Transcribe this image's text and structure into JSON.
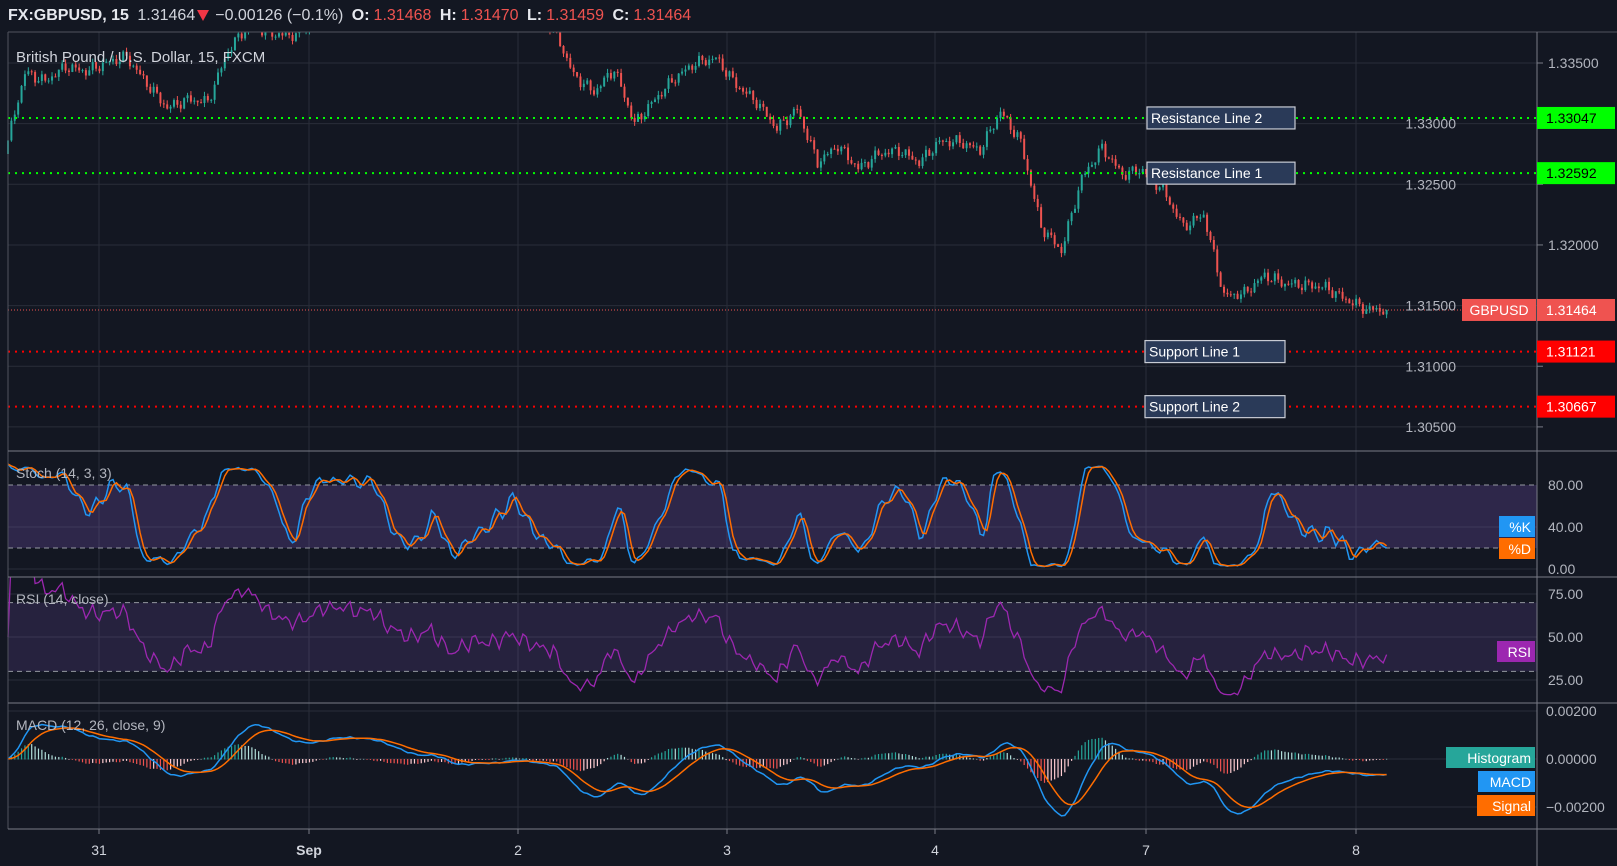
{
  "header": {
    "symbol": "FX:GBPUSD, 15",
    "last": "1.31464",
    "change": "−0.00126 (−0.1%)",
    "o_label": "O:",
    "o": "1.31468",
    "h_label": "H:",
    "h": "1.31470",
    "l_label": "L:",
    "l": "1.31459",
    "c_label": "C:",
    "c": "1.31464"
  },
  "colors": {
    "background": "#131722",
    "grid": "#2a2e39",
    "up": "#26a69a",
    "down": "#ef5350",
    "resistance": "#00ff00",
    "support": "#ff0000",
    "k": "#2196f3",
    "d": "#ff6d00",
    "rsi": "#9c27b0",
    "band": "#7e57c2"
  },
  "chart_data": [
    {
      "type": "candlestick",
      "title": "British Pound / U.S. Dollar, 15, FXCM",
      "x_ticks": [
        "31",
        "Sep",
        "2",
        "3",
        "4",
        "7",
        "8"
      ],
      "price_ticks": [
        "1.33500",
        "1.33000",
        "1.32500",
        "1.32000",
        "1.31500",
        "1.31000",
        "1.30500"
      ],
      "ylim": [
        1.303,
        1.339
      ],
      "closes": [
        1.3275,
        1.3342,
        1.3335,
        1.3347,
        1.3343,
        1.335,
        1.3355,
        1.3333,
        1.3313,
        1.332,
        1.3318,
        1.336,
        1.3382,
        1.3375,
        1.3372,
        1.338,
        1.3395,
        1.34,
        1.3405,
        1.34,
        1.3395,
        1.34,
        1.3385,
        1.339,
        1.3388,
        1.3392,
        1.3385,
        1.338,
        1.334,
        1.3326,
        1.3345,
        1.33,
        1.332,
        1.3338,
        1.335,
        1.3354,
        1.3332,
        1.3318,
        1.3296,
        1.3312,
        1.3268,
        1.3282,
        1.3263,
        1.3275,
        1.3278,
        1.3268,
        1.3285,
        1.3285,
        1.3278,
        1.331,
        1.3285,
        1.3215,
        1.3195,
        1.3255,
        1.328,
        1.3258,
        1.3262,
        1.3245,
        1.3215,
        1.3225,
        1.3158,
        1.316,
        1.3175,
        1.3168,
        1.3167,
        1.3165,
        1.3155,
        1.3147,
        1.31464
      ],
      "levels": [
        {
          "label": "Resistance Line 2",
          "value": "1.33047",
          "kind": "resistance"
        },
        {
          "label": "Resistance Line 1",
          "value": "1.32592",
          "kind": "resistance"
        },
        {
          "label": "Support Line 1",
          "value": "1.31121",
          "kind": "support"
        },
        {
          "label": "Support Line 2",
          "value": "1.30667",
          "kind": "support"
        }
      ],
      "last_price_label": "GBPUSD",
      "last_price": "1.31464"
    },
    {
      "type": "line",
      "title": "Stoch (14, 3, 3)",
      "ticks": [
        "80.00",
        "40.00",
        "0.00"
      ],
      "band": [
        20,
        80
      ],
      "series": [
        {
          "name": "%K"
        },
        {
          "name": "%D"
        }
      ]
    },
    {
      "type": "line",
      "title": "RSI (14, close)",
      "ticks": [
        "75.00",
        "50.00",
        "25.00"
      ],
      "band": [
        30,
        70
      ],
      "series": [
        {
          "name": "RSI"
        }
      ]
    },
    {
      "type": "line",
      "title": "MACD (12, 26, close, 9)",
      "ticks": [
        "0.00200",
        "0.00000",
        "−0.00200"
      ],
      "series": [
        {
          "name": "Histogram"
        },
        {
          "name": "MACD"
        },
        {
          "name": "Signal"
        }
      ]
    }
  ]
}
